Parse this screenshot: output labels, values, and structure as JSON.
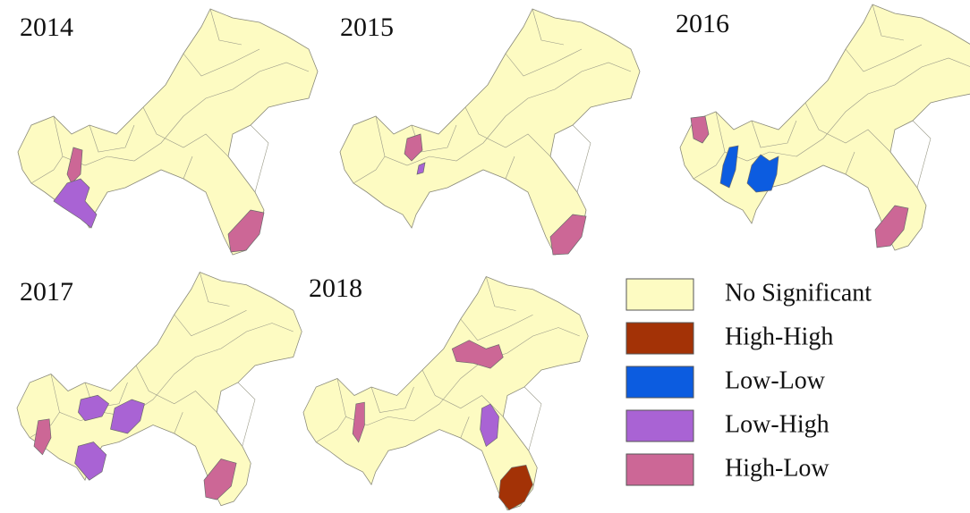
{
  "panels": [
    {
      "title": "2014"
    },
    {
      "title": "2015"
    },
    {
      "title": "2016"
    },
    {
      "title": "2017"
    },
    {
      "title": "2018"
    }
  ],
  "legend": [
    {
      "label": "No Significant",
      "color": "#fdfbc2"
    },
    {
      "label": "High-High",
      "color": "#a33206"
    },
    {
      "label": "Low-Low",
      "color": "#0c5ce0"
    },
    {
      "label": "Low-High",
      "color": "#a963d4"
    },
    {
      "label": "High-Low",
      "color": "#cc6796"
    }
  ]
}
